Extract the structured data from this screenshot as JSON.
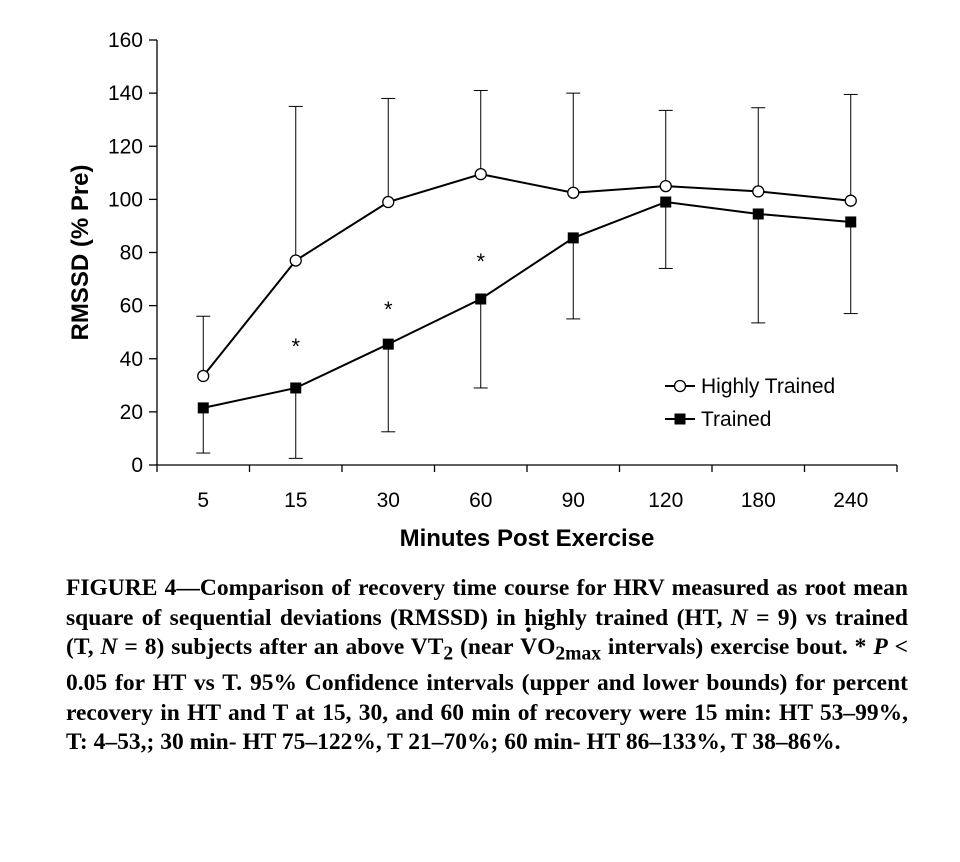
{
  "chart_data": {
    "type": "line",
    "categories": [
      "5",
      "15",
      "30",
      "60",
      "90",
      "120",
      "180",
      "240"
    ],
    "xlabel": "Minutes Post Exercise",
    "ylabel": "RMSSD (% Pre)",
    "ylim": [
      0,
      160
    ],
    "yticks": [
      0,
      20,
      40,
      60,
      80,
      100,
      120,
      140,
      160
    ],
    "grid": false,
    "legend": "bottom-right",
    "series": [
      {
        "name": "Highly Trained",
        "marker": "open-circle",
        "values": [
          33.5,
          77,
          99,
          109.5,
          102.5,
          105,
          103,
          99.5
        ],
        "error_upper": [
          56,
          135,
          138,
          141,
          140,
          133.5,
          134.5,
          139.5
        ],
        "color": "#000000"
      },
      {
        "name": "Trained",
        "marker": "filled-square",
        "values": [
          21.5,
          29,
          45.5,
          62.5,
          85.5,
          99,
          94.5,
          91.5
        ],
        "error_lower": [
          4.5,
          2.5,
          12.5,
          29,
          55,
          74,
          53.5,
          57
        ],
        "color": "#000000"
      }
    ],
    "annotations": [
      {
        "text": "*",
        "category": "15",
        "y": 47
      },
      {
        "text": "*",
        "category": "30",
        "y": 61
      },
      {
        "text": "*",
        "category": "60",
        "y": 79
      }
    ]
  },
  "caption": {
    "l1": "FIGURE 4—Comparison of recovery time course for HRV measured as root mean square of sequential deviations (RMSSD) in highly trained (HT, ",
    "n_sym": "N",
    "l2": " = 9) vs trained (T, ",
    "l3": " = 8) subjects after an above VT",
    "sub2": "2",
    "l4": " (near ",
    "v_letter": "V",
    "o2": "O",
    "sub_max": "2max",
    "l5": " intervals) exercise bout. * ",
    "p_sym": "P",
    "l6": " < 0.05 for HT vs T. 95% Confidence intervals (upper and lower bounds) for percent recovery in HT and T at 15, 30, and 60 min of recovery were 15 min: HT 53–99%, T: 4–53,; 30 min- HT 75–122%, T 21–70%; 60 min- HT 86–133%, T 38–86%."
  }
}
